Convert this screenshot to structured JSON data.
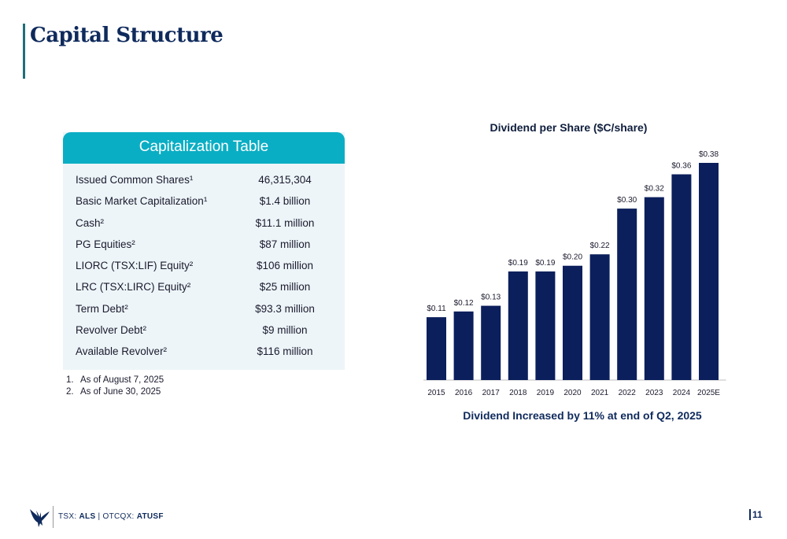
{
  "page": {
    "title": "Capital Structure",
    "page_number": "11"
  },
  "cap_table": {
    "header": "Capitalization Table",
    "rows": [
      {
        "label": "Issued Common Shares¹",
        "value": "46,315,304"
      },
      {
        "label": "Basic Market Capitalization¹",
        "value": "$1.4 billion"
      },
      {
        "label": "Cash²",
        "value": "$11.1 million"
      },
      {
        "label": "PG Equities²",
        "value": "$87 million"
      },
      {
        "label": "LIORC (TSX:LIF) Equity²",
        "value": "$106 million"
      },
      {
        "label": "LRC (TSX:LIRC) Equity²",
        "value": "$25 million"
      },
      {
        "label": "Term Debt²",
        "value": "$93.3 million"
      },
      {
        "label": "Revolver Debt²",
        "value": "$9 million"
      },
      {
        "label": "Available Revolver²",
        "value": "$116 million"
      }
    ],
    "footnotes": [
      {
        "num": "1.",
        "text": "As of August 7, 2025"
      },
      {
        "num": "2.",
        "text": "As of June 30, 2025"
      }
    ]
  },
  "chart_data": {
    "type": "bar",
    "title": "Dividend per Share ($C/share)",
    "categories": [
      "2015",
      "2016",
      "2017",
      "2018",
      "2019",
      "2020",
      "2021",
      "2022",
      "2023",
      "2024",
      "2025E"
    ],
    "values": [
      0.11,
      0.12,
      0.13,
      0.19,
      0.19,
      0.2,
      0.22,
      0.3,
      0.32,
      0.36,
      0.38
    ],
    "labels": [
      "$0.11",
      "$0.12",
      "$0.13",
      "$0.19",
      "$0.19",
      "$0.20",
      "$0.22",
      "$0.30",
      "$0.32",
      "$0.36",
      "$0.38"
    ],
    "ylim": [
      0,
      0.38
    ],
    "grid": false,
    "bar_color": "#0b1f5c",
    "caption": "Dividend Increased by 11% at end of Q2, 2025"
  },
  "footer": {
    "tsx_prefix": "TSX: ",
    "tsx_ticker": "ALS",
    "separator": " | ",
    "otc_prefix": "OTCQX: ",
    "otc_ticker": "ATUSF",
    "logo_icon": "eagle-logo-icon"
  },
  "colors": {
    "title": "#0f2a5c",
    "accent_teal": "#0aaec4",
    "table_bg": "#edf5f8",
    "bar": "#0b1f5c"
  }
}
